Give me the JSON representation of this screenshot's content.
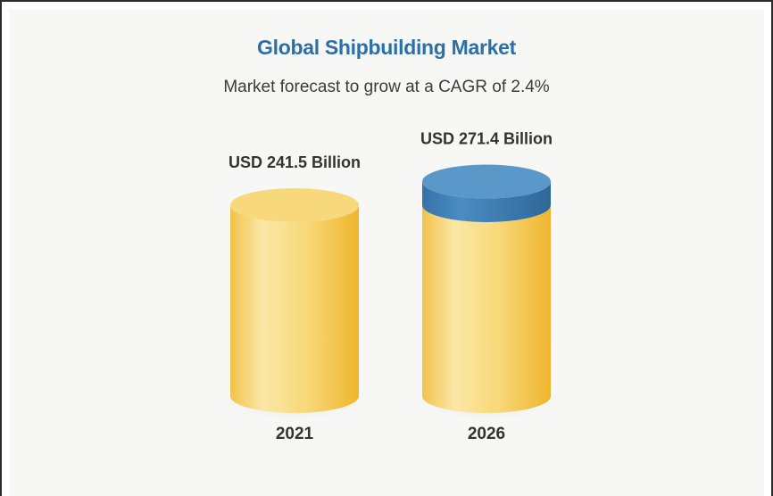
{
  "title": "Global Shipbuilding Market",
  "subtitle": "Market forecast to grow at a CAGR of 2.4%",
  "chart_data": {
    "type": "bar",
    "categories": [
      "2021",
      "2026"
    ],
    "values": [
      241.5,
      271.4
    ],
    "value_labels": [
      "USD 241.5 Billion",
      "USD 271.4 Billion"
    ],
    "title": "Global Shipbuilding Market",
    "subtitle": "Market forecast to grow at a CAGR of 2.4%",
    "units": "USD Billion",
    "grid": false,
    "legend": "none",
    "bar_style": "cylinder",
    "colors": {
      "bar_body": "#f5c74f",
      "bar_body_light": "#fbe39c",
      "bar_top": "#f7d97c",
      "growth_segment": "#3f82b8",
      "growth_segment_top": "#5a98c9",
      "title": "#2a6fa8"
    }
  }
}
